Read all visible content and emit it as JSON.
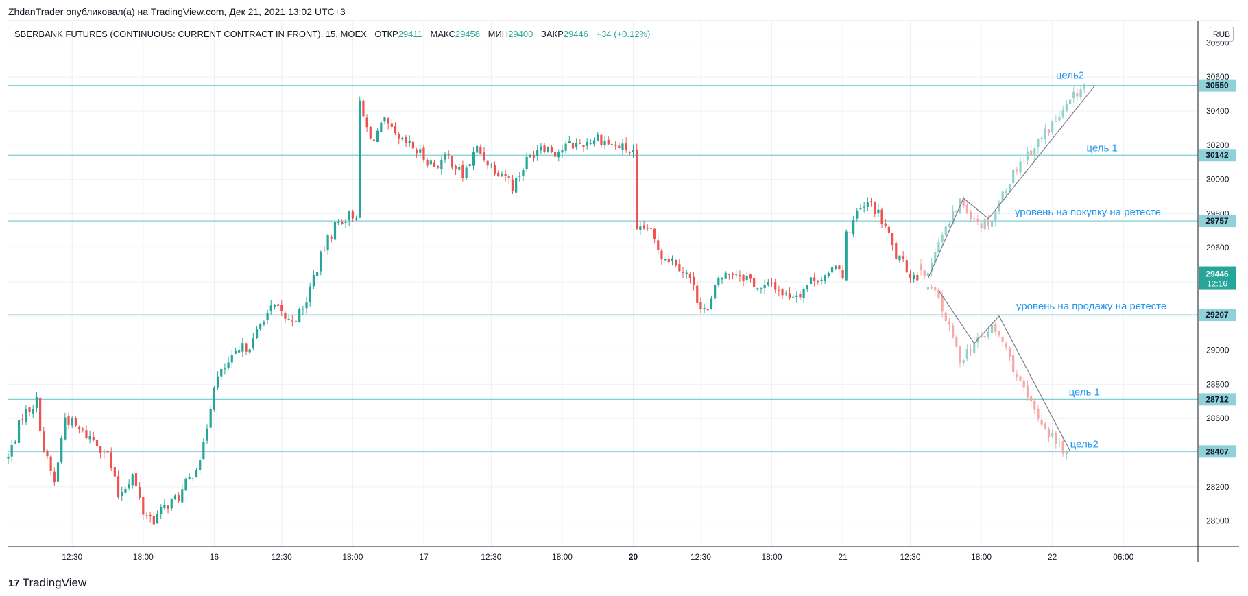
{
  "caption": "ZhdanTrader опубликовал(а) на TradingView.com, Дек 21, 2021 13:02 UTC+3",
  "legend": {
    "symbol": "SBERBANK FUTURES (CONTINUOUS: CURRENT CONTRACT IN FRONT), 15, MOEX",
    "open_label": "ОТКР",
    "open": "29411",
    "high_label": "МАКС",
    "high": "29458",
    "low_label": "МИН",
    "low": "29400",
    "close_label": "ЗАКР",
    "close": "29446",
    "change": "+34 (+0.12%)"
  },
  "currency": "RUB",
  "footer": {
    "logo": "17",
    "brand": "TradingView"
  },
  "colors": {
    "up": "#26a69a",
    "down": "#ef5350",
    "level": "#7ecfd6",
    "annotation": "#2196f3",
    "grid": "#eef0f3"
  },
  "chart_data": {
    "type": "candlestick",
    "ylim": [
      27850,
      30930
    ],
    "x_range_bars": [
      0,
      335
    ],
    "y_ticks": [
      "28000",
      "28200",
      "28400",
      "28600",
      "28800",
      "29000",
      "29200",
      "29400",
      "29600",
      "29800",
      "30000",
      "30200",
      "30400",
      "30600",
      "30800"
    ],
    "x_ticks": [
      {
        "label": "12:30",
        "bar": 18
      },
      {
        "label": "18:00",
        "bar": 38
      },
      {
        "label": "16",
        "bar": 58,
        "bold": false
      },
      {
        "label": "12:30",
        "bar": 77
      },
      {
        "label": "18:00",
        "bar": 97
      },
      {
        "label": "17",
        "bar": 117
      },
      {
        "label": "12:30",
        "bar": 136
      },
      {
        "label": "18:00",
        "bar": 156
      },
      {
        "label": "20",
        "bar": 176,
        "bold": true
      },
      {
        "label": "12:30",
        "bar": 195
      },
      {
        "label": "18:00",
        "bar": 215
      },
      {
        "label": "21",
        "bar": 235
      },
      {
        "label": "12:30",
        "bar": 254
      },
      {
        "label": "18:00",
        "bar": 274
      },
      {
        "label": "22",
        "bar": 294
      },
      {
        "label": "06:00",
        "bar": 314
      }
    ],
    "levels": [
      {
        "price": 30550,
        "label": "30550"
      },
      {
        "price": 30142,
        "label": "30142"
      },
      {
        "price": 29757,
        "label": "29757"
      },
      {
        "price": 29207,
        "label": "29207"
      },
      {
        "price": 28712,
        "label": "28712"
      },
      {
        "price": 28407,
        "label": "28407"
      }
    ],
    "last_price": {
      "price": 29446,
      "label": "29446",
      "countdown": "12:16"
    },
    "annotations": [
      {
        "text": "цель2",
        "price": 30590,
        "bar": 299
      },
      {
        "text": "цель 1",
        "price": 30165,
        "bar": 308
      },
      {
        "text": "уровень на покупку на ретесте",
        "price": 29790,
        "bar": 304
      },
      {
        "text": "уровень на продажу на ретесте",
        "price": 29240,
        "bar": 305
      },
      {
        "text": "цель 1",
        "price": 28735,
        "bar": 303
      },
      {
        "text": "цель2",
        "price": 28430,
        "bar": 303
      }
    ],
    "scenario_up": [
      {
        "bar": 259,
        "price": 29420
      },
      {
        "bar": 269,
        "price": 29890
      },
      {
        "bar": 276,
        "price": 29770
      },
      {
        "bar": 306,
        "price": 30550
      }
    ],
    "scenario_down": [
      {
        "bar": 262,
        "price": 29350
      },
      {
        "bar": 272,
        "price": 29040
      },
      {
        "bar": 279,
        "price": 29200
      },
      {
        "bar": 299,
        "price": 28410
      }
    ],
    "anchors": [
      [
        0,
        28370
      ],
      [
        4,
        28620
      ],
      [
        8,
        28700
      ],
      [
        10,
        28420
      ],
      [
        13,
        28220
      ],
      [
        16,
        28610
      ],
      [
        20,
        28530
      ],
      [
        24,
        28480
      ],
      [
        28,
        28390
      ],
      [
        31,
        28150
      ],
      [
        35,
        28270
      ],
      [
        38,
        28050
      ],
      [
        41,
        28010
      ],
      [
        45,
        28100
      ],
      [
        48,
        28140
      ],
      [
        52,
        28280
      ],
      [
        55,
        28430
      ],
      [
        58,
        28810
      ],
      [
        62,
        28920
      ],
      [
        66,
        29010
      ],
      [
        69,
        29050
      ],
      [
        72,
        29200
      ],
      [
        75,
        29250
      ],
      [
        79,
        29170
      ],
      [
        83,
        29230
      ],
      [
        86,
        29430
      ],
      [
        89,
        29600
      ],
      [
        92,
        29730
      ],
      [
        95,
        29780
      ],
      [
        98,
        29800
      ],
      [
        99,
        30430
      ],
      [
        102,
        30230
      ],
      [
        106,
        30330
      ],
      [
        110,
        30220
      ],
      [
        113,
        30200
      ],
      [
        116,
        30150
      ],
      [
        120,
        30080
      ],
      [
        124,
        30130
      ],
      [
        128,
        30020
      ],
      [
        132,
        30180
      ],
      [
        136,
        30080
      ],
      [
        140,
        30030
      ],
      [
        142,
        29960
      ],
      [
        146,
        30110
      ],
      [
        150,
        30210
      ],
      [
        154,
        30160
      ],
      [
        158,
        30200
      ],
      [
        162,
        30210
      ],
      [
        166,
        30250
      ],
      [
        170,
        30200
      ],
      [
        174,
        30180
      ],
      [
        176,
        30150
      ],
      [
        177,
        29680
      ],
      [
        180,
        29720
      ],
      [
        184,
        29560
      ],
      [
        188,
        29520
      ],
      [
        192,
        29420
      ],
      [
        194,
        29300
      ],
      [
        197,
        29220
      ],
      [
        200,
        29420
      ],
      [
        204,
        29460
      ],
      [
        208,
        29430
      ],
      [
        212,
        29350
      ],
      [
        215,
        29390
      ],
      [
        219,
        29320
      ],
      [
        223,
        29340
      ],
      [
        227,
        29430
      ],
      [
        231,
        29420
      ],
      [
        233,
        29520
      ],
      [
        235,
        29450
      ],
      [
        236,
        29670
      ],
      [
        239,
        29800
      ],
      [
        243,
        29860
      ],
      [
        247,
        29720
      ],
      [
        250,
        29550
      ],
      [
        254,
        29450
      ],
      [
        256,
        29430
      ]
    ],
    "prediction": [
      [
        257,
        29500
      ],
      [
        259,
        29420
      ],
      [
        261,
        29610
      ],
      [
        265,
        29740
      ],
      [
        268,
        29870
      ],
      [
        271,
        29800
      ],
      [
        274,
        29740
      ],
      [
        277,
        29770
      ],
      [
        281,
        29960
      ],
      [
        285,
        30110
      ],
      [
        289,
        30190
      ],
      [
        293,
        30300
      ],
      [
        297,
        30390
      ],
      [
        301,
        30510
      ],
      [
        303,
        30550
      ]
    ],
    "prediction_down": [
      [
        259,
        29360
      ],
      [
        262,
        29300
      ],
      [
        265,
        29120
      ],
      [
        268,
        28950
      ],
      [
        271,
        29020
      ],
      [
        274,
        29070
      ],
      [
        277,
        29130
      ],
      [
        280,
        29050
      ],
      [
        283,
        28900
      ],
      [
        286,
        28750
      ],
      [
        289,
        28640
      ],
      [
        293,
        28520
      ],
      [
        296,
        28440
      ],
      [
        298,
        28400
      ]
    ]
  }
}
